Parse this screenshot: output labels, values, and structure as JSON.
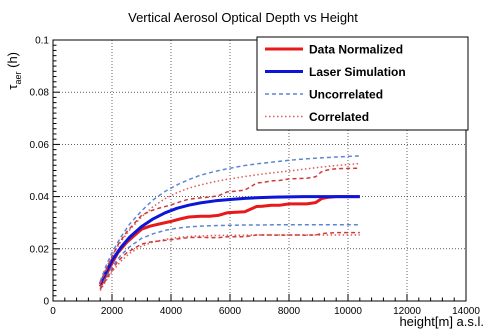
{
  "chart_data": {
    "type": "line",
    "title": "Vertical Aerosol Optical Depth vs Height",
    "xlabel": "height[m] a.s.l.",
    "ylabel": "τaer (h)",
    "ylabel_symbol": "τ",
    "ylabel_sub": "aer",
    "ylabel_suffix": " (h)",
    "xlim": [
      0,
      14000
    ],
    "ylim": [
      0,
      0.1
    ],
    "x_ticks": [
      0,
      2000,
      4000,
      6000,
      8000,
      10000,
      12000,
      14000
    ],
    "x_tick_labels": [
      "0",
      "2000",
      "4000",
      "6000",
      "8000",
      "10000",
      "12000",
      "14000"
    ],
    "y_ticks": [
      0,
      0.02,
      0.04,
      0.06,
      0.08,
      0.1
    ],
    "y_tick_labels": [
      "0",
      "0.02",
      "0.04",
      "0.06",
      "0.08",
      "0.1"
    ],
    "grid": true,
    "legend_position": "top-right",
    "series": [
      {
        "name": "Data Normalized",
        "color": "#e8191a",
        "style": "solid",
        "width": 3,
        "x": [
          1600,
          1800,
          2000,
          2200,
          2500,
          2800,
          3000,
          3300,
          3600,
          4000,
          4300,
          4600,
          5000,
          5300,
          5600,
          5900,
          6200,
          6500,
          6700,
          6900,
          7100,
          7400,
          7700,
          8000,
          8300,
          8600,
          8900,
          9100,
          9300,
          9600,
          10000,
          10400
        ],
        "y": [
          0.0055,
          0.01,
          0.0145,
          0.0185,
          0.0225,
          0.0255,
          0.0275,
          0.0287,
          0.0295,
          0.0305,
          0.0314,
          0.0322,
          0.0325,
          0.0325,
          0.0328,
          0.0338,
          0.034,
          0.0342,
          0.0352,
          0.0362,
          0.0363,
          0.0367,
          0.0367,
          0.0372,
          0.0372,
          0.0372,
          0.0377,
          0.0392,
          0.0397,
          0.04,
          0.04,
          0.04
        ]
      },
      {
        "name": "Laser Simulation",
        "color": "#0b16d8",
        "style": "solid",
        "width": 3,
        "x": [
          1600,
          1800,
          2000,
          2300,
          2600,
          3000,
          3400,
          3800,
          4200,
          4600,
          5000,
          5500,
          6000,
          6500,
          7000,
          7500,
          8000,
          8500,
          9000,
          9500,
          10000,
          10400
        ],
        "y": [
          0.0065,
          0.0112,
          0.0155,
          0.0205,
          0.0245,
          0.0285,
          0.0315,
          0.0338,
          0.0355,
          0.0367,
          0.0376,
          0.0384,
          0.0389,
          0.0393,
          0.0396,
          0.0398,
          0.0399,
          0.04,
          0.04,
          0.04,
          0.04,
          0.04
        ]
      },
      {
        "name": "Uncorrelated",
        "color": "#5b86d6",
        "style": "dashed",
        "width": 1.5,
        "x": [
          1600,
          1800,
          2000,
          2300,
          2600,
          3000,
          3400,
          3800,
          4200,
          4600,
          5000,
          5500,
          6000,
          6500,
          7000,
          7500,
          8000,
          8500,
          9000,
          9500,
          10000,
          10400
        ],
        "y": [
          0.0075,
          0.0135,
          0.0185,
          0.0245,
          0.0295,
          0.0345,
          0.0388,
          0.042,
          0.0445,
          0.0465,
          0.0482,
          0.0497,
          0.0509,
          0.0519,
          0.0527,
          0.0533,
          0.0539,
          0.0544,
          0.0548,
          0.0551,
          0.0554,
          0.0556
        ]
      },
      {
        "name": "Uncorrelated lower",
        "color": "#5b86d6",
        "style": "dashed",
        "width": 1.5,
        "x": [
          1600,
          1800,
          2000,
          2300,
          2600,
          3000,
          3400,
          3800,
          4200,
          4600,
          5000,
          5500,
          6000,
          6500,
          7000,
          7500,
          8000,
          8500,
          9000,
          9500,
          10000,
          10400
        ],
        "y": [
          0.0048,
          0.009,
          0.013,
          0.0175,
          0.0208,
          0.024,
          0.0258,
          0.0271,
          0.0279,
          0.0284,
          0.0287,
          0.0289,
          0.029,
          0.0291,
          0.0291,
          0.0292,
          0.0292,
          0.0292,
          0.0292,
          0.0292,
          0.0292,
          0.0292
        ]
      },
      {
        "name": "Correlated",
        "color": "#e35858",
        "style": "dotted",
        "width": 1.5,
        "x": [
          1600,
          1800,
          2000,
          2300,
          2600,
          3000,
          3400,
          3800,
          4200,
          4600,
          5000,
          5500,
          6000,
          6500,
          7000,
          7500,
          8000,
          8500,
          9000,
          9500,
          10000,
          10400
        ],
        "y": [
          0.007,
          0.0125,
          0.0172,
          0.0228,
          0.0272,
          0.0322,
          0.0362,
          0.0392,
          0.0415,
          0.0432,
          0.0445,
          0.0458,
          0.0468,
          0.0477,
          0.0485,
          0.0492,
          0.0498,
          0.0505,
          0.0512,
          0.0518,
          0.0523,
          0.0527
        ]
      },
      {
        "name": "Correlated lower",
        "color": "#e35858",
        "style": "dotted",
        "width": 1.5,
        "x": [
          1600,
          1800,
          2000,
          2300,
          2600,
          3000,
          3400,
          3800,
          4200,
          4600,
          5000,
          5500,
          6000,
          6500,
          7000,
          7500,
          8000,
          8500,
          9000,
          9500,
          10000,
          10400
        ],
        "y": [
          0.004,
          0.0078,
          0.0112,
          0.0152,
          0.0183,
          0.021,
          0.0226,
          0.0236,
          0.0243,
          0.0247,
          0.0249,
          0.0251,
          0.0252,
          0.0252,
          0.0253,
          0.0253,
          0.0253,
          0.0253,
          0.0253,
          0.0253,
          0.0253,
          0.0253
        ]
      },
      {
        "name": "Data Normalized upper",
        "color": "#cc3b3b",
        "style": "dashed",
        "width": 1.5,
        "x": [
          1600,
          1800,
          2000,
          2200,
          2500,
          2800,
          3000,
          3300,
          3600,
          4000,
          4300,
          4600,
          5000,
          5300,
          5600,
          5900,
          6200,
          6500,
          6700,
          6900,
          7100,
          7400,
          7700,
          8000,
          8300,
          8600,
          8900,
          9100,
          9300,
          9600,
          10000,
          10400
        ],
        "y": [
          0.0065,
          0.0118,
          0.017,
          0.0215,
          0.0265,
          0.0303,
          0.0328,
          0.0345,
          0.0356,
          0.0368,
          0.038,
          0.039,
          0.0395,
          0.0398,
          0.0403,
          0.0418,
          0.0421,
          0.0425,
          0.0438,
          0.0452,
          0.0454,
          0.046,
          0.0462,
          0.0468,
          0.0469,
          0.047,
          0.0476,
          0.0495,
          0.0502,
          0.0507,
          0.0508,
          0.0509
        ]
      },
      {
        "name": "Data Normalized lower",
        "color": "#cc3b3b",
        "style": "dashed",
        "width": 1.5,
        "x": [
          1600,
          1800,
          2000,
          2200,
          2500,
          2800,
          3000,
          3300,
          3600,
          4000,
          4300,
          4600,
          5000,
          5300,
          5600,
          5900,
          6200,
          6500,
          6700,
          6900,
          7100,
          7400,
          7700,
          8000,
          8300,
          8600,
          8900,
          9100,
          9300,
          9600,
          10000,
          10400
        ],
        "y": [
          0.0045,
          0.0082,
          0.0118,
          0.0152,
          0.0185,
          0.0205,
          0.0218,
          0.0226,
          0.023,
          0.0235,
          0.0239,
          0.0243,
          0.0244,
          0.0243,
          0.0243,
          0.0246,
          0.0246,
          0.0246,
          0.025,
          0.0253,
          0.0253,
          0.0253,
          0.0252,
          0.0253,
          0.0253,
          0.0252,
          0.0253,
          0.0258,
          0.026,
          0.0262,
          0.0262,
          0.0262
        ]
      }
    ],
    "legend": [
      {
        "label": "Data Normalized",
        "color": "#e8191a",
        "style": "solid"
      },
      {
        "label": "Laser Simulation",
        "color": "#0b16d8",
        "style": "solid"
      },
      {
        "label": "Uncorrelated",
        "color": "#5b86d6",
        "style": "dashed"
      },
      {
        "label": "Correlated",
        "color": "#e35858",
        "style": "dotted"
      }
    ]
  }
}
